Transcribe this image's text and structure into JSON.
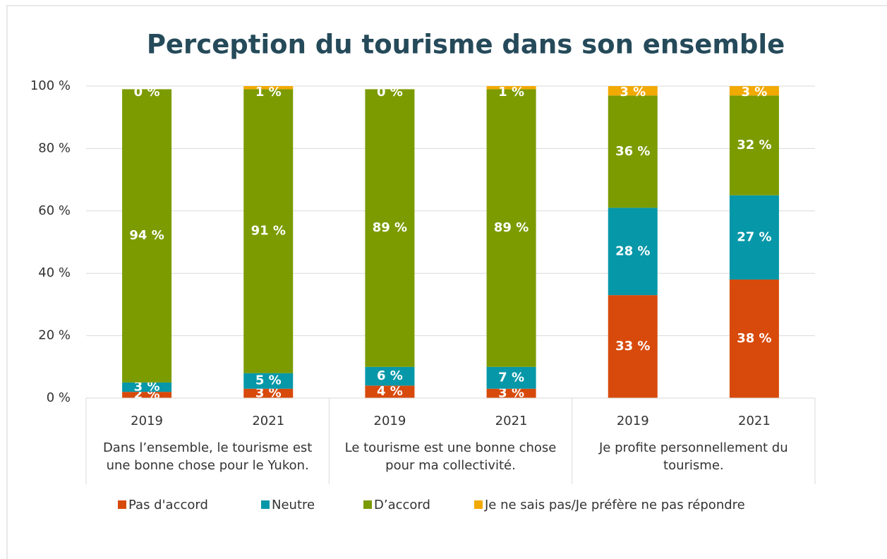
{
  "chart_data": {
    "type": "stacked_bar",
    "title": "Perception du tourisme dans son ensemble",
    "categories": [
      "2019",
      "2021",
      "2019",
      "2021",
      "2019",
      "2021"
    ],
    "groups": [
      "Dans l’ensemble, le tourisme est une bonne chose pour le Yukon.",
      "Le tourisme est une bonne chose pour ma collectivité.",
      "Je profite personnellement du tourisme."
    ],
    "series": [
      {
        "name": "Pas d'accord",
        "color": "#d84a0c",
        "values": [
          2,
          3,
          4,
          3,
          33,
          38
        ],
        "value_labels": [
          "2 %",
          "3 %",
          "4 %",
          "3 %",
          "33 %",
          "38 %"
        ]
      },
      {
        "name": "Neutre",
        "color": "#0697a8",
        "values": [
          3,
          5,
          6,
          7,
          28,
          27
        ],
        "value_labels": [
          "3 %",
          "5 %",
          "6 %",
          "7 %",
          "28 %",
          "27 %"
        ]
      },
      {
        "name": "D’accord",
        "color": "#7b9b00",
        "values": [
          94,
          91,
          89,
          89,
          36,
          32
        ],
        "value_labels": [
          "94 %",
          "91 %",
          "89 %",
          "89 %",
          "36 %",
          "32 %"
        ]
      },
      {
        "name": "Je ne sais pas/Je préfère ne pas répondre",
        "color": "#f2a900",
        "values": [
          0,
          1,
          0,
          1,
          3,
          3
        ],
        "value_labels": [
          "0 %",
          "1 %",
          "0 %",
          "1 %",
          "3 %",
          "3 %"
        ]
      }
    ],
    "ylim": [
      0,
      100
    ],
    "yticks": [
      {
        "value": 0,
        "label": "0 %"
      },
      {
        "value": 20,
        "label": "20 %"
      },
      {
        "value": 40,
        "label": "40 %"
      },
      {
        "value": 60,
        "label": "60 %"
      },
      {
        "value": 80,
        "label": "80 %"
      },
      {
        "value": 100,
        "label": "100 %"
      }
    ],
    "grid": true
  }
}
